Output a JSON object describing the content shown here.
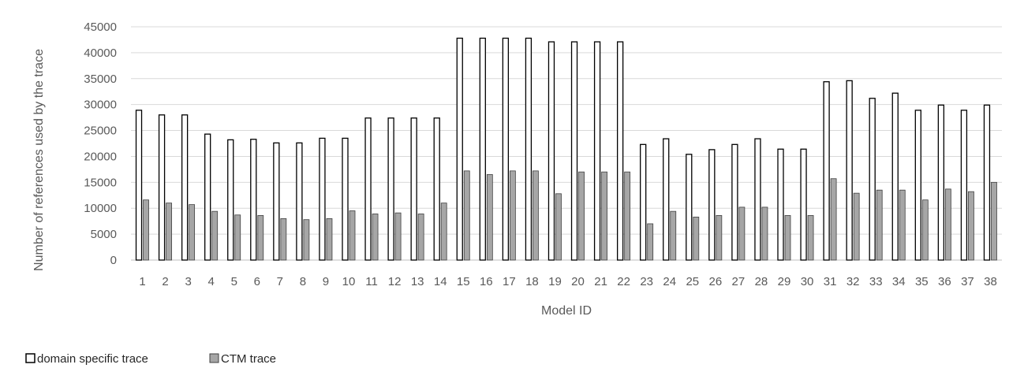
{
  "chart_data": {
    "type": "bar",
    "title": "",
    "xlabel": "Model ID",
    "ylabel": "Number of references used by the trace",
    "ylim": [
      0,
      45000
    ],
    "yticks": [
      0,
      5000,
      10000,
      15000,
      20000,
      25000,
      30000,
      35000,
      40000,
      45000
    ],
    "grid": true,
    "legend": "bottom-left",
    "categories": [
      "1",
      "2",
      "3",
      "4",
      "5",
      "6",
      "7",
      "8",
      "9",
      "10",
      "11",
      "12",
      "13",
      "14",
      "15",
      "16",
      "17",
      "18",
      "19",
      "20",
      "21",
      "22",
      "23",
      "24",
      "25",
      "26",
      "27",
      "28",
      "29",
      "30",
      "31",
      "32",
      "33",
      "34",
      "35",
      "36",
      "37",
      "38"
    ],
    "series": [
      {
        "name": "domain specific trace",
        "fill": "#ffffff",
        "stroke": "#000000",
        "values": [
          28900,
          28000,
          28000,
          24300,
          23200,
          23300,
          22600,
          22600,
          23500,
          23500,
          27400,
          27400,
          27400,
          27400,
          42800,
          42800,
          42800,
          42800,
          42100,
          42100,
          42100,
          42100,
          22300,
          23400,
          20400,
          21300,
          22300,
          23400,
          21400,
          21400,
          34400,
          34600,
          31200,
          32200,
          28900,
          29900,
          28900,
          29900
        ]
      },
      {
        "name": "CTM trace",
        "fill": "#a6a6a6",
        "stroke": "#404040",
        "values": [
          11600,
          11000,
          10700,
          9400,
          8700,
          8600,
          8000,
          7800,
          8000,
          9500,
          8900,
          9100,
          8900,
          11000,
          17200,
          16500,
          17200,
          17200,
          12800,
          17000,
          17000,
          17000,
          7000,
          9400,
          8300,
          8600,
          10200,
          10200,
          8600,
          8600,
          15700,
          12900,
          13500,
          13500,
          11600,
          13700,
          13200,
          15000
        ]
      }
    ]
  }
}
